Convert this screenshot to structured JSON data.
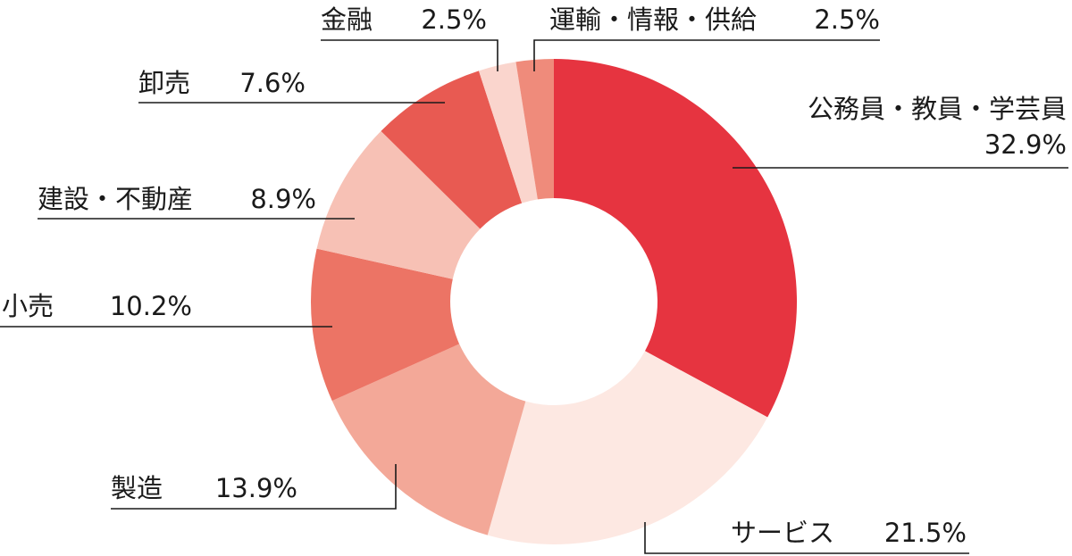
{
  "chart_data": {
    "type": "pie",
    "donut": true,
    "start_angle_deg": 0,
    "direction": "clockwise",
    "slices": [
      {
        "name": "公務員・教員・学芸員",
        "value": 32.9,
        "label": "32.9%",
        "color": "#e63440"
      },
      {
        "name": "サービス",
        "value": 21.5,
        "label": "21.5%",
        "color": "#fde8e2"
      },
      {
        "name": "製造",
        "value": 13.9,
        "label": "13.9%",
        "color": "#f3a898"
      },
      {
        "name": "小売",
        "value": 10.2,
        "label": "10.2%",
        "color": "#ec7465"
      },
      {
        "name": "建設・不動産",
        "value": 8.9,
        "label": "8.9%",
        "color": "#f7c1b5"
      },
      {
        "name": "卸売",
        "value": 7.6,
        "label": "7.6%",
        "color": "#e85a52"
      },
      {
        "name": "金融",
        "value": 2.5,
        "label": "2.5%",
        "color": "#fad5cd"
      },
      {
        "name": "運輸・情報・供給",
        "value": 2.5,
        "label": "2.5%",
        "color": "#ef8b7b"
      }
    ]
  }
}
